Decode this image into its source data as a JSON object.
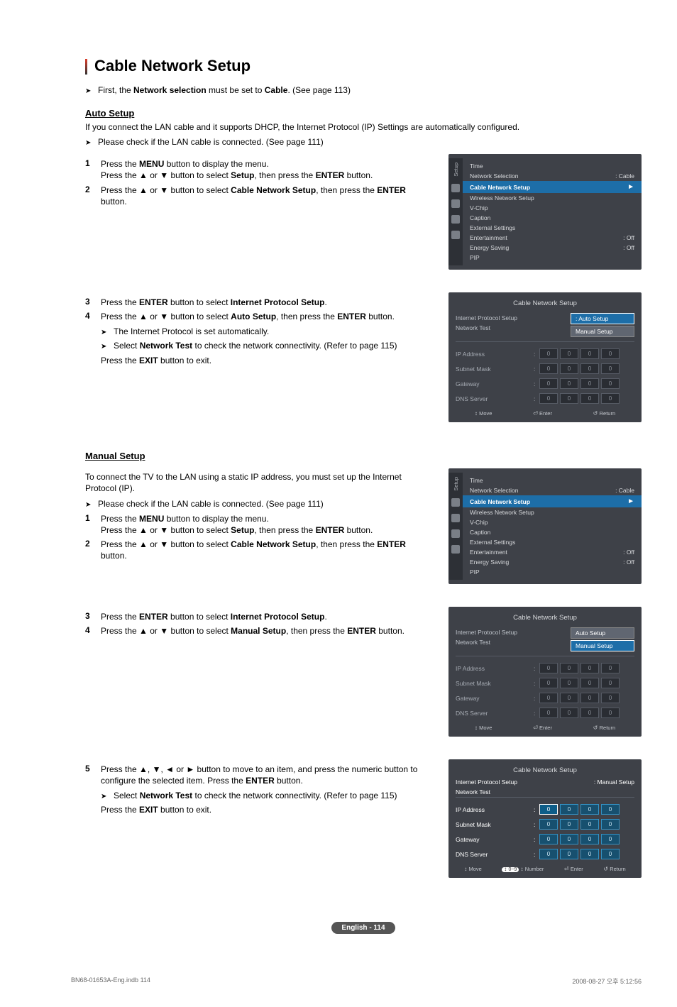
{
  "page": {
    "title": "Cable Network Setup",
    "intro_prefix": "First, the ",
    "intro_bold1": "Network selection",
    "intro_mid": " must be set to ",
    "intro_bold2": "Cable",
    "intro_suffix": ". (See page 113)",
    "badge": "English - 114",
    "footer_left": "BN68-01653A-Eng.indb   114",
    "footer_right": "2008-08-27   오후 5:12:56"
  },
  "auto": {
    "heading": "Auto Setup",
    "desc": "If you connect the LAN cable and it supports DHCP, the Internet Protocol (IP) Settings are automatically configured.",
    "check": "Please check if the LAN cable is connected. (See page 111)",
    "step1a_pre": "Press the ",
    "step1a_b": "MENU",
    "step1a_post": " button to display the menu.",
    "step1b": "Press the ▲ or ▼ button to select ",
    "step1b_b": "Setup",
    "step1b_post": ", then press the ",
    "step1b_b2": "ENTER",
    "step1b_post2": " button.",
    "step2": "Press the ▲ or ▼ button to select ",
    "step2_b": "Cable Network Setup",
    "step2_post": ", then press the ",
    "step2_b2": "ENTER",
    "step2_post2": " button.",
    "step3_pre": "Press the ",
    "step3_b": "ENTER",
    "step3_mid": " button to select ",
    "step3_b2": "Internet Protocol Setup",
    "step3_post": ".",
    "step4": "Press the ▲ or ▼ button to select ",
    "step4_b": "Auto Setup",
    "step4_post": ", then press the ",
    "step4_b2": "ENTER",
    "step4_post2": " button.",
    "step4_sub1": "The Internet Protocol is set automatically.",
    "step4_sub2_pre": "Select ",
    "step4_sub2_b": "Network Test",
    "step4_sub2_post": " to check the network connectivity. (Refer to page 115)",
    "step4_exit_pre": "Press the ",
    "step4_exit_b": "EXIT",
    "step4_exit_post": " button to exit."
  },
  "manual": {
    "heading": "Manual Setup",
    "desc": "To connect the TV to the LAN using a static IP address, you must set up the Internet Protocol (IP).",
    "check": "Please check if the LAN cable is connected. (See page 111)",
    "step1a_pre": "Press the ",
    "step1a_b": "MENU",
    "step1a_post": " button to display the menu.",
    "step1b": "Press the ▲ or ▼ button to select ",
    "step1b_b": "Setup",
    "step1b_post": ", then press the ",
    "step1b_b2": "ENTER",
    "step1b_post2": " button.",
    "step2": "Press the ▲ or ▼ button to select ",
    "step2_b": "Cable Network Setup",
    "step2_post": ", then press the ",
    "step2_b2": "ENTER",
    "step2_post2": " button.",
    "step3_pre": "Press the ",
    "step3_b": "ENTER",
    "step3_mid": "  button to select ",
    "step3_b2": "Internet Protocol Setup",
    "step3_post": ".",
    "step4": "Press the ▲ or ▼ button to select ",
    "step4_b": "Manual Setup",
    "step4_post": ", then press the ",
    "step4_b2": "ENTER",
    "step4_post2": " button.",
    "step5_pre": "Press the ▲, ▼, ◄ or ► button to move to an item, and press the numeric button to configure the selected item. Press the ",
    "step5_b": "ENTER",
    "step5_post": " button.",
    "step5_sub_pre": "Select ",
    "step5_sub_b": "Network Test",
    "step5_sub_post": " to check the network connectivity. (Refer to page 115)",
    "step5_exit_pre": "Press the ",
    "step5_exit_b": "EXIT",
    "step5_exit_post": " button to exit."
  },
  "tv_setup": {
    "side_label": "Setup",
    "items": [
      {
        "label": "Time",
        "val": ""
      },
      {
        "label": "Network Selection",
        "val": ": Cable"
      }
    ],
    "highlight": "Cable Network Setup",
    "below": [
      {
        "label": "Wireless Network Setup",
        "val": ""
      },
      {
        "label": "V-Chip",
        "val": ""
      },
      {
        "label": "Caption",
        "val": ""
      },
      {
        "label": "External Settings",
        "val": ""
      },
      {
        "label": "Entertainment",
        "val": ": Off"
      },
      {
        "label": "Energy Saving",
        "val": ": Off"
      },
      {
        "label": "PIP",
        "val": ""
      }
    ]
  },
  "cns": {
    "title": "Cable Network Setup",
    "ips_label": "Internet Protocol Setup",
    "nt_label": "Network Test",
    "auto": "Auto Setup",
    "manual": "Manual Setup",
    "fields": [
      "IP Address",
      "Subnet Mask",
      "Gateway",
      "DNS Server"
    ],
    "zero": "0",
    "footer_move": "Move",
    "footer_enter": "Enter",
    "footer_return": "Return",
    "footer_number": "Number",
    "num_label": "0~9",
    "manual_val": ": Manual Setup"
  }
}
